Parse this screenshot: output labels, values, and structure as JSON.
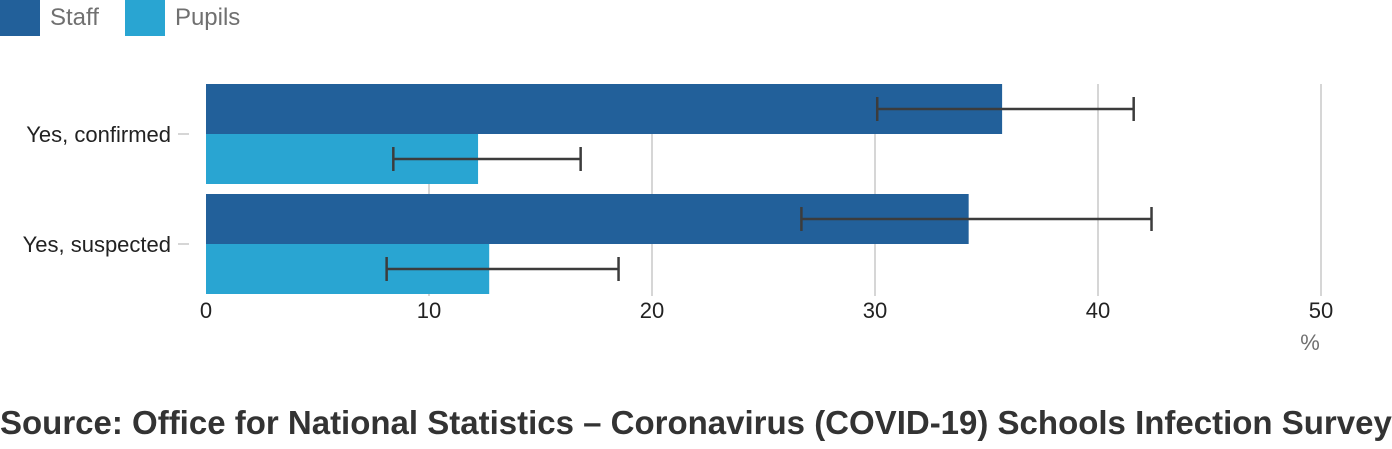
{
  "chart_data": {
    "type": "bar",
    "orientation": "horizontal",
    "categories": [
      "Yes, confirmed",
      "Yes, suspected"
    ],
    "series": [
      {
        "name": "Staff",
        "color": "#22609a",
        "values": [
          35.7,
          34.2
        ],
        "ci_low": [
          30.1,
          26.7
        ],
        "ci_high": [
          41.6,
          42.4
        ]
      },
      {
        "name": "Pupils",
        "color": "#29a5d2",
        "values": [
          12.2,
          12.7
        ],
        "ci_low": [
          8.4,
          8.1
        ],
        "ci_high": [
          16.8,
          18.5
        ]
      }
    ],
    "xticks": [
      0,
      10,
      20,
      30,
      40,
      50
    ],
    "xlim": [
      0,
      50
    ],
    "xlabel": "%",
    "grid": true,
    "legend_position": "top-left"
  },
  "source": "Source: Office for National Statistics – Coronavirus (COVID-19) Schools Infection Survey"
}
